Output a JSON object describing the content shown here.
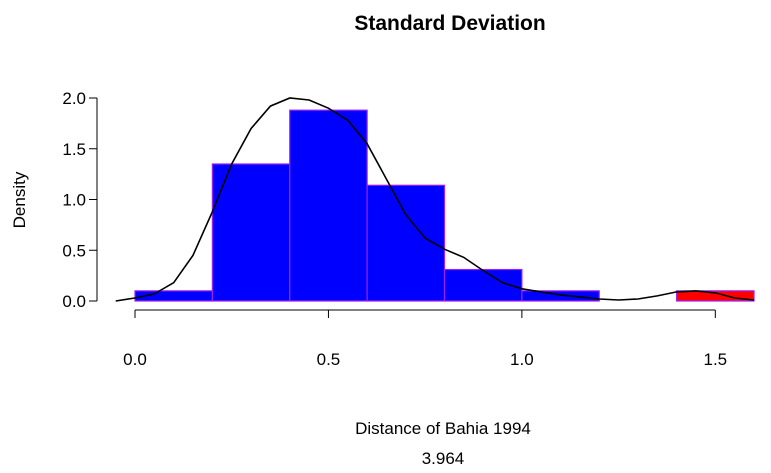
{
  "chart_data": {
    "type": "bar",
    "title": "Standard Deviation",
    "xlabel": "Distance of Bahia 1994",
    "sublabel": "3.964",
    "ylabel": "Density",
    "xlim": [
      0,
      1.6
    ],
    "ylim": [
      0,
      2.0
    ],
    "x_ticks": [
      "0.0",
      "0.5",
      "1.0",
      "1.5"
    ],
    "y_ticks": [
      "0.0",
      "0.5",
      "1.0",
      "1.5",
      "2.0"
    ],
    "bins": [
      {
        "start": 0.0,
        "end": 0.2,
        "density": 0.1,
        "highlight": false
      },
      {
        "start": 0.2,
        "end": 0.4,
        "density": 1.35,
        "highlight": false
      },
      {
        "start": 0.4,
        "end": 0.6,
        "density": 1.88,
        "highlight": false
      },
      {
        "start": 0.6,
        "end": 0.8,
        "density": 1.14,
        "highlight": false
      },
      {
        "start": 0.8,
        "end": 1.0,
        "density": 0.31,
        "highlight": false
      },
      {
        "start": 1.0,
        "end": 1.2,
        "density": 0.1,
        "highlight": false
      },
      {
        "start": 1.2,
        "end": 1.4,
        "density": 0.0,
        "highlight": false
      },
      {
        "start": 1.4,
        "end": 1.6,
        "density": 0.1,
        "highlight": true
      }
    ],
    "density_curve": {
      "x": [
        -0.05,
        0.0,
        0.05,
        0.1,
        0.15,
        0.2,
        0.25,
        0.3,
        0.35,
        0.4,
        0.45,
        0.5,
        0.55,
        0.6,
        0.65,
        0.7,
        0.75,
        0.8,
        0.85,
        0.9,
        0.95,
        1.0,
        1.05,
        1.1,
        1.15,
        1.2,
        1.25,
        1.3,
        1.35,
        1.4,
        1.45,
        1.5,
        1.55,
        1.6
      ],
      "y": [
        0.0,
        0.03,
        0.07,
        0.18,
        0.45,
        0.88,
        1.35,
        1.7,
        1.92,
        2.0,
        1.98,
        1.9,
        1.78,
        1.55,
        1.2,
        0.85,
        0.62,
        0.51,
        0.43,
        0.3,
        0.18,
        0.12,
        0.09,
        0.06,
        0.04,
        0.02,
        0.01,
        0.02,
        0.05,
        0.09,
        0.1,
        0.08,
        0.03,
        0.01
      ]
    },
    "colors": {
      "bar_fill": "#0000ff",
      "highlight_fill": "#ff0000",
      "bar_border": "#a020f0",
      "curve": "#000000"
    }
  }
}
